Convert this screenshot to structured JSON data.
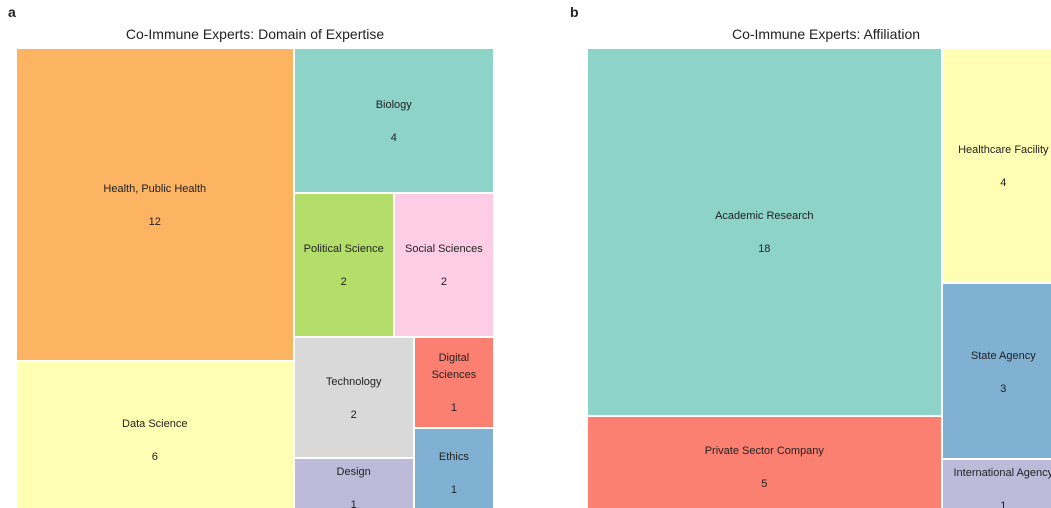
{
  "chart_data": [
    {
      "type": "treemap",
      "panel": "a",
      "title": "Co-Immune Experts: Domain of Expertise",
      "categories": [
        "Health, Public Health",
        "Data Science",
        "Biology",
        "Political Science",
        "Social Sciences",
        "Technology",
        "Design",
        "Digital Sciences",
        "Ethics"
      ],
      "values": [
        12,
        6,
        4,
        2,
        2,
        2,
        1,
        1,
        1
      ],
      "colors": [
        "#fdb462",
        "#ffffb3",
        "#8dd3c7",
        "#b3de69",
        "#fccde5",
        "#d9d9d9",
        "#bebada",
        "#fb8072",
        "#80b1d3"
      ]
    },
    {
      "type": "treemap",
      "panel": "b",
      "title": "Co-Immune Experts: Affiliation",
      "categories": [
        "Academic Research",
        "Private Sector Company",
        "Healthcare Facility",
        "State Agency",
        "International Agency"
      ],
      "values": [
        18,
        5,
        4,
        3,
        1
      ],
      "colors": [
        "#8dd3c7",
        "#fb8072",
        "#ffffb3",
        "#80b1d3",
        "#bebada"
      ]
    }
  ]
}
